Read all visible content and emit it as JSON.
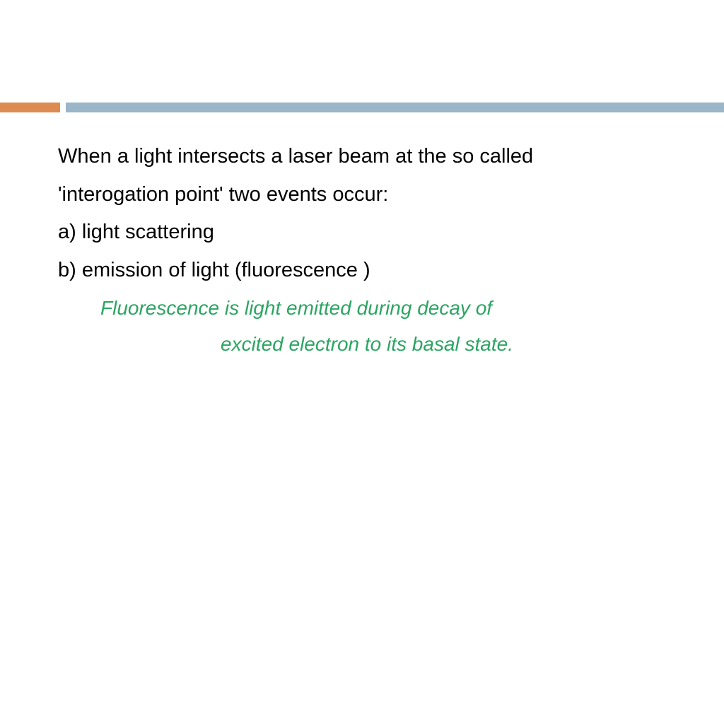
{
  "colors": {
    "accent": "#dd8b52",
    "header_bar": "#9bb5c9",
    "text_primary": "#000000",
    "text_definition": "#2ba562",
    "background": "#ffffff"
  },
  "content": {
    "line1": "When a light intersects a laser beam at the so called",
    "line2": "'interogation point' two events occur:",
    "option_a": "a) light scattering",
    "option_b": "b) emission of light (fluorescence )",
    "definition_line1": "Fluorescence is light emitted during decay of",
    "definition_line2": "excited electron to its basal state."
  },
  "typography": {
    "body_fontsize": 29,
    "definition_fontsize": 28,
    "line_height": 1.85
  }
}
